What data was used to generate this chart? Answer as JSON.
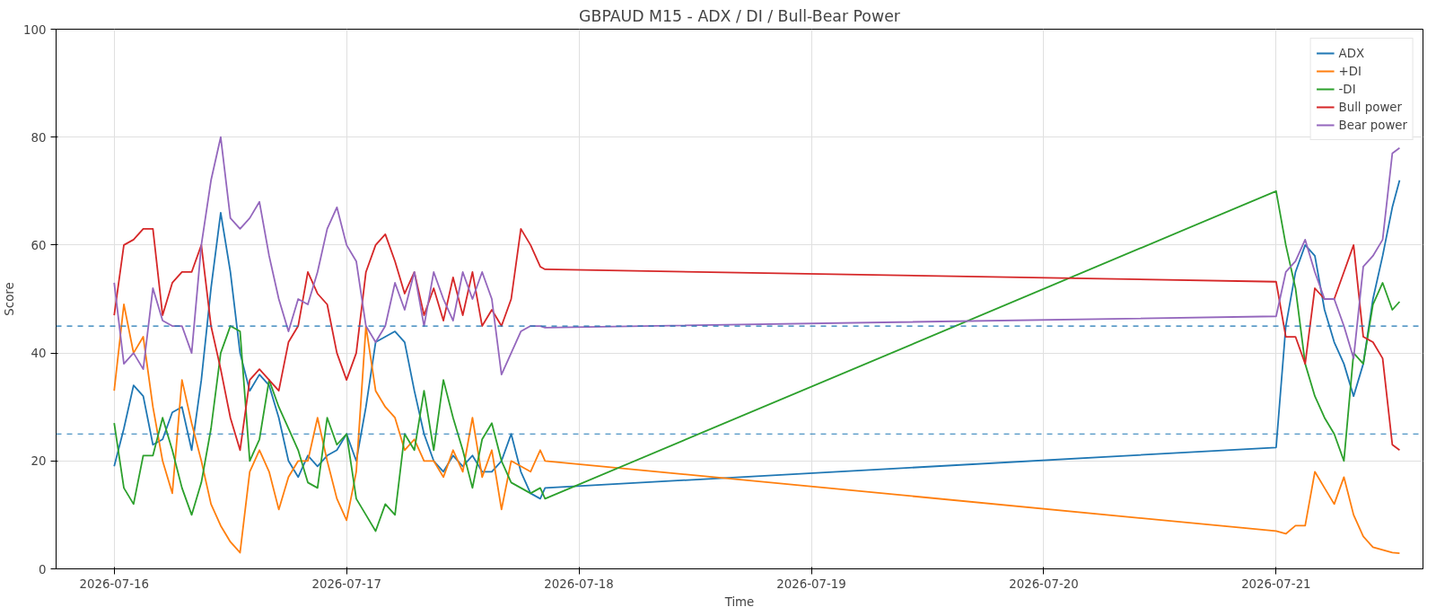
{
  "chart_data": {
    "type": "line",
    "title": "GBPAUD M15 - ADX / DI / Bull-Bear Power",
    "xlabel": "Time",
    "ylabel": "Score",
    "x": [
      "2026-07-16T00:00",
      "2026-07-16T01:00",
      "2026-07-16T02:00",
      "2026-07-16T03:00",
      "2026-07-16T04:00",
      "2026-07-16T05:00",
      "2026-07-16T06:00",
      "2026-07-16T07:00",
      "2026-07-16T08:00",
      "2026-07-16T09:00",
      "2026-07-16T10:00",
      "2026-07-16T11:00",
      "2026-07-16T12:00",
      "2026-07-16T13:00",
      "2026-07-16T14:00",
      "2026-07-16T15:00",
      "2026-07-16T16:00",
      "2026-07-16T17:00",
      "2026-07-16T18:00",
      "2026-07-16T19:00",
      "2026-07-16T20:00",
      "2026-07-16T21:00",
      "2026-07-16T22:00",
      "2026-07-16T23:00",
      "2026-07-17T00:00",
      "2026-07-17T01:00",
      "2026-07-17T02:00",
      "2026-07-17T03:00",
      "2026-07-17T04:00",
      "2026-07-17T05:00",
      "2026-07-17T06:00",
      "2026-07-17T07:00",
      "2026-07-17T08:00",
      "2026-07-17T09:00",
      "2026-07-17T10:00",
      "2026-07-17T11:00",
      "2026-07-17T12:00",
      "2026-07-17T13:00",
      "2026-07-17T14:00",
      "2026-07-17T15:00",
      "2026-07-17T16:00",
      "2026-07-17T17:00",
      "2026-07-17T18:00",
      "2026-07-17T19:00",
      "2026-07-17T20:00",
      "2026-07-17T20:30",
      "2026-07-21T00:00",
      "2026-07-21T01:00",
      "2026-07-21T02:00",
      "2026-07-21T03:00",
      "2026-07-21T04:00",
      "2026-07-21T05:00",
      "2026-07-21T06:00",
      "2026-07-21T07:00",
      "2026-07-21T08:00",
      "2026-07-21T09:00",
      "2026-07-21T10:00",
      "2026-07-21T11:00",
      "2026-07-21T12:00",
      "2026-07-21T12:45"
    ],
    "series": [
      {
        "name": "ADX",
        "color": "#1f77b4",
        "values": [
          19,
          26,
          34,
          32,
          23,
          24,
          29,
          30,
          22,
          35,
          52,
          66,
          55,
          40,
          33,
          36,
          34,
          28,
          20,
          17,
          21,
          19,
          21,
          22,
          25,
          20,
          30,
          42,
          43,
          44,
          42,
          33,
          25,
          20,
          18,
          21,
          19,
          21,
          18,
          18,
          20,
          25,
          18,
          14,
          13,
          15,
          22.5,
          45,
          55,
          60,
          58,
          48,
          42,
          38,
          32,
          38,
          50,
          58,
          67,
          72
        ]
      },
      {
        "name": "+DI",
        "color": "#ff7f0e",
        "values": [
          33,
          49,
          40,
          43,
          30,
          20,
          14,
          35,
          27,
          20,
          12,
          8,
          5,
          3,
          18,
          22,
          18,
          11,
          17,
          20,
          20,
          28,
          20,
          13,
          9,
          18,
          45,
          33,
          30,
          28,
          22,
          24,
          20,
          20,
          17,
          22,
          18,
          28,
          17,
          22,
          11,
          20,
          19,
          18,
          22,
          20,
          7,
          6.5,
          8,
          8,
          18,
          15,
          12,
          17,
          10,
          6,
          4,
          3.5,
          3,
          2.9
        ]
      },
      {
        "name": "-DI",
        "color": "#2ca02c",
        "values": [
          27,
          15,
          12,
          21,
          21,
          28,
          22,
          15,
          10,
          16,
          26,
          40,
          45,
          44,
          20,
          24,
          35,
          30,
          26,
          22,
          16,
          15,
          28,
          23,
          25,
          13,
          10,
          7,
          12,
          10,
          25,
          22,
          33,
          22,
          35,
          28,
          22,
          15,
          24,
          27,
          20,
          16,
          15,
          14,
          15,
          13,
          70,
          60,
          52,
          38,
          32,
          28,
          25,
          20,
          40,
          38,
          49,
          53,
          48,
          49.5
        ]
      },
      {
        "name": "Bull power",
        "color": "#d62728",
        "values": [
          47,
          60,
          61,
          63,
          63,
          47,
          53,
          55,
          55,
          60,
          45,
          37,
          28,
          22,
          35,
          37,
          35,
          33,
          42,
          45,
          55,
          51,
          49,
          40,
          35,
          40,
          55,
          60,
          62,
          57,
          51,
          55,
          47,
          52,
          46,
          54,
          47,
          55,
          45,
          48,
          45,
          50,
          63,
          60,
          56,
          55.5,
          53.2,
          43,
          43,
          38,
          52,
          50,
          50,
          55,
          60,
          43,
          42,
          39,
          23,
          22
        ]
      },
      {
        "name": "Bear power",
        "color": "#9467bd",
        "values": [
          53,
          38,
          40,
          37,
          52,
          46,
          45,
          45,
          40,
          60,
          72,
          80,
          65,
          63,
          65,
          68,
          58,
          50,
          44,
          50,
          49,
          55,
          63,
          67,
          60,
          57,
          45,
          42,
          45,
          53,
          48,
          55,
          45,
          55,
          50,
          46,
          55,
          50,
          55,
          50,
          36,
          40,
          44,
          45,
          45,
          44.7,
          46.8,
          55,
          57,
          61,
          55,
          50,
          50,
          45,
          39,
          56,
          58,
          61,
          77,
          78
        ]
      }
    ],
    "xlim": [
      "2026-07-15T18:00",
      "2026-07-21T15:10"
    ],
    "xticks": [
      "2026-07-16",
      "2026-07-17",
      "2026-07-18",
      "2026-07-19",
      "2026-07-20",
      "2026-07-21"
    ],
    "ylim": [
      0,
      100
    ],
    "yticks": [
      0,
      20,
      40,
      60,
      80,
      100
    ],
    "ref_lines": [
      {
        "axis": "y",
        "value": 45,
        "color": "#1f77b4",
        "line_style": "dashed"
      },
      {
        "axis": "y",
        "value": 25,
        "color": "#1f77b4",
        "line_style": "dashed"
      }
    ],
    "grid": true,
    "legend": "top right",
    "line_style": "solid",
    "marker": "none"
  }
}
